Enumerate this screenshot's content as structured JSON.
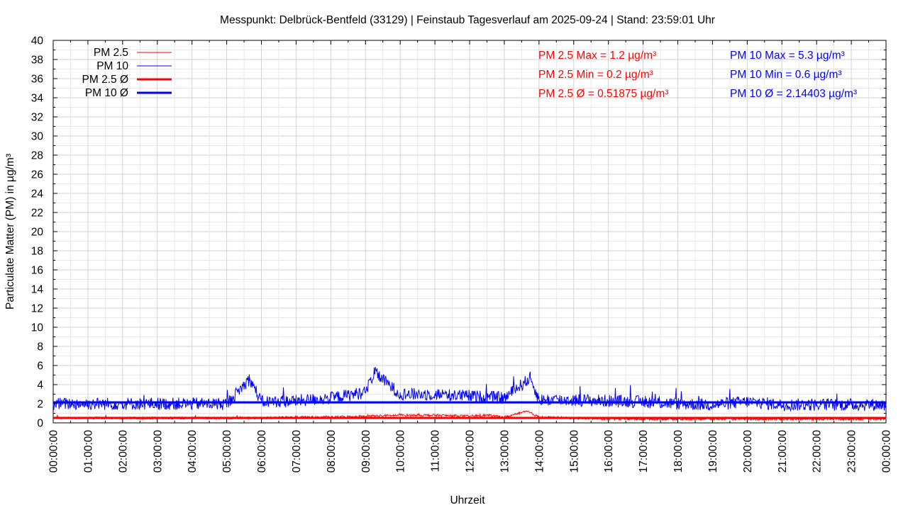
{
  "chart_data": {
    "type": "line",
    "title": "Messpunkt: Delbrück-Bentfeld (33129) | Feinstaub Tagesverlauf am 2025-09-24 | Stand: 23:59:01 Uhr",
    "xlabel": "Uhrzeit",
    "ylabel": "Particulate Matter (PM) in µg/m³",
    "ylim": [
      0,
      40
    ],
    "xlim": [
      "00:00:00",
      "24:00:00"
    ],
    "grid": true,
    "legend_position": "top-left",
    "x_tick_labels": [
      "00:00:00",
      "01:00:00",
      "02:00:00",
      "03:00:00",
      "04:00:00",
      "05:00:00",
      "06:00:00",
      "07:00:00",
      "08:00:00",
      "09:00:00",
      "10:00:00",
      "11:00:00",
      "12:00:00",
      "13:00:00",
      "14:00:00",
      "15:00:00",
      "16:00:00",
      "17:00:00",
      "18:00:00",
      "19:00:00",
      "20:00:00",
      "21:00:00",
      "22:00:00",
      "23:00:00",
      "00:00:00"
    ],
    "y_tick_labels": [
      "0",
      "2",
      "4",
      "6",
      "8",
      "10",
      "12",
      "14",
      "16",
      "18",
      "20",
      "22",
      "24",
      "26",
      "28",
      "30",
      "32",
      "34",
      "36",
      "38",
      "40"
    ],
    "series": [
      {
        "name": "PM 2.5",
        "color": "#ff0000",
        "x": [
          "00:00",
          "01:00",
          "02:00",
          "03:00",
          "04:00",
          "05:00",
          "06:00",
          "07:00",
          "08:00",
          "09:00",
          "10:00",
          "11:00",
          "12:00",
          "12:30",
          "13:00",
          "13:40",
          "14:00",
          "15:00",
          "16:00",
          "17:00",
          "18:00",
          "19:00",
          "20:00",
          "21:00",
          "22:00",
          "23:00",
          "24:00"
        ],
        "values": [
          0.5,
          0.5,
          0.5,
          0.5,
          0.5,
          0.5,
          0.5,
          0.6,
          0.6,
          0.7,
          0.8,
          0.8,
          0.7,
          0.8,
          0.6,
          1.2,
          0.6,
          0.5,
          0.4,
          0.4,
          0.4,
          0.4,
          0.4,
          0.4,
          0.4,
          0.4,
          0.4
        ]
      },
      {
        "name": "PM 10",
        "color": "#0000ff",
        "x": [
          "00:00",
          "01:00",
          "02:00",
          "03:00",
          "04:00",
          "05:00",
          "05:40",
          "06:00",
          "07:00",
          "08:00",
          "09:00",
          "09:15",
          "10:00",
          "11:00",
          "12:00",
          "13:00",
          "13:45",
          "14:00",
          "15:00",
          "16:00",
          "17:00",
          "18:00",
          "19:00",
          "20:00",
          "21:00",
          "22:00",
          "23:00",
          "24:00"
        ],
        "values": [
          2.0,
          2.0,
          2.0,
          2.0,
          2.0,
          2.0,
          4.6,
          2.2,
          2.3,
          2.6,
          3.2,
          5.3,
          3.0,
          3.0,
          2.8,
          2.6,
          4.7,
          2.4,
          2.4,
          2.3,
          2.2,
          2.0,
          1.9,
          2.2,
          1.9,
          1.9,
          1.9,
          1.9
        ]
      },
      {
        "name": "PM 2.5 Ø",
        "color": "#ff0000",
        "constant": 0.51875
      },
      {
        "name": "PM 10 Ø",
        "color": "#0000ff",
        "constant": 2.14403
      }
    ],
    "annotations": {
      "pm25_max": "PM 2.5 Max = 1.2 µg/m³",
      "pm25_min": "PM 2.5 Min = 0.2 µg/m³",
      "pm25_avg": "PM 2.5 Ø = 0.51875 µg/m³",
      "pm10_max": "PM 10 Max = 5.3 µg/m³",
      "pm10_min": "PM 10 Min = 0.6 µg/m³",
      "pm10_avg": "PM 10 Ø = 2.14403 µg/m³"
    }
  }
}
